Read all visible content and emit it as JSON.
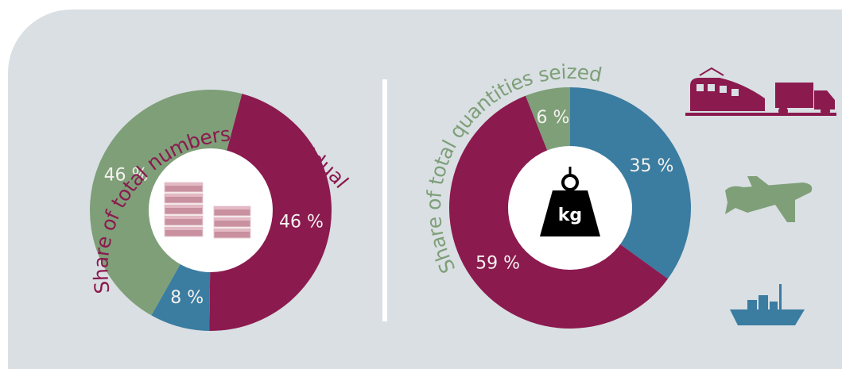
{
  "chart_data": [
    {
      "type": "donut",
      "title": "Share of total numbers of individual seizures",
      "categories": [
        "Maroon",
        "Blue",
        "Green"
      ],
      "values": [
        46,
        8,
        46
      ],
      "value_labels": [
        "46 %",
        "8 %",
        "46 %"
      ],
      "colors": [
        "#8b1a4f",
        "#3b7ca1",
        "#7e9f78"
      ],
      "title_color": "#8b1a4f"
    },
    {
      "type": "donut",
      "title": "Share of total quantities seized",
      "categories": [
        "Blue",
        "Maroon",
        "Green"
      ],
      "values": [
        35,
        59,
        6
      ],
      "value_labels": [
        "35 %",
        "59 %",
        "6 %"
      ],
      "colors": [
        "#3b7ca1",
        "#8b1a4f",
        "#7e9f78"
      ],
      "title_color": "#7e9f78",
      "center_label": "kg"
    }
  ]
}
